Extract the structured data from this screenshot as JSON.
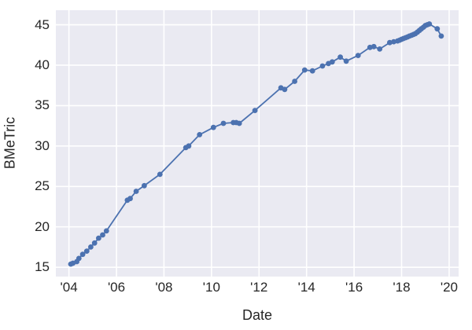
{
  "chart_data": {
    "type": "line",
    "title": "",
    "xlabel": "Date",
    "ylabel": "BMeTric",
    "grid": true,
    "legend": "none",
    "plot_background": "#EAEAF2",
    "grid_color": "#ffffff",
    "text_color": "#262626",
    "line_color": "#4C72B0",
    "marker": "circle",
    "xlim": [
      2003.45,
      2020.4
    ],
    "ylim": [
      13.85,
      46.8
    ],
    "x_ticks": {
      "values": [
        2004,
        2006,
        2008,
        2010,
        2012,
        2014,
        2016,
        2018,
        2020
      ],
      "labels": [
        "'04",
        "'06",
        "'08",
        "'10",
        "'12",
        "'14",
        "'16",
        "'18",
        "'20"
      ]
    },
    "y_ticks": {
      "values": [
        15,
        20,
        25,
        30,
        35,
        40,
        45
      ],
      "labels": [
        "15",
        "20",
        "25",
        "30",
        "35",
        "40",
        "45"
      ]
    },
    "series": [
      {
        "name": "BMeTric",
        "color": "#4C72B0",
        "x": [
          2004.08,
          2004.17,
          2004.33,
          2004.42,
          2004.58,
          2004.75,
          2004.92,
          2005.08,
          2005.25,
          2005.42,
          2005.58,
          2006.46,
          2006.58,
          2006.83,
          2007.17,
          2007.83,
          2008.92,
          2009.04,
          2009.5,
          2010.08,
          2010.5,
          2010.92,
          2011.04,
          2011.17,
          2011.83,
          2012.92,
          2013.08,
          2013.5,
          2013.92,
          2014.25,
          2014.67,
          2014.92,
          2015.08,
          2015.42,
          2015.67,
          2016.17,
          2016.67,
          2016.83,
          2017.08,
          2017.5,
          2017.67,
          2017.83,
          2017.92,
          2018.0,
          2018.08,
          2018.17,
          2018.25,
          2018.33,
          2018.42,
          2018.5,
          2018.58,
          2018.67,
          2018.75,
          2018.83,
          2018.92,
          2019.0,
          2019.08,
          2019.17,
          2019.5,
          2019.67
        ],
        "y": [
          15.4,
          15.5,
          15.7,
          16.1,
          16.6,
          17.0,
          17.5,
          18.0,
          18.6,
          19.0,
          19.5,
          23.3,
          23.5,
          24.4,
          25.1,
          26.5,
          29.8,
          30.0,
          31.4,
          32.3,
          32.8,
          32.9,
          32.9,
          32.8,
          34.4,
          37.2,
          37.0,
          38.0,
          39.4,
          39.3,
          39.9,
          40.2,
          40.4,
          41.0,
          40.5,
          41.2,
          42.2,
          42.3,
          42.0,
          42.8,
          42.9,
          43.0,
          43.1,
          43.2,
          43.3,
          43.4,
          43.5,
          43.6,
          43.7,
          43.8,
          43.9,
          44.1,
          44.3,
          44.5,
          44.7,
          44.9,
          45.0,
          45.1,
          44.5,
          43.6
        ]
      }
    ]
  }
}
